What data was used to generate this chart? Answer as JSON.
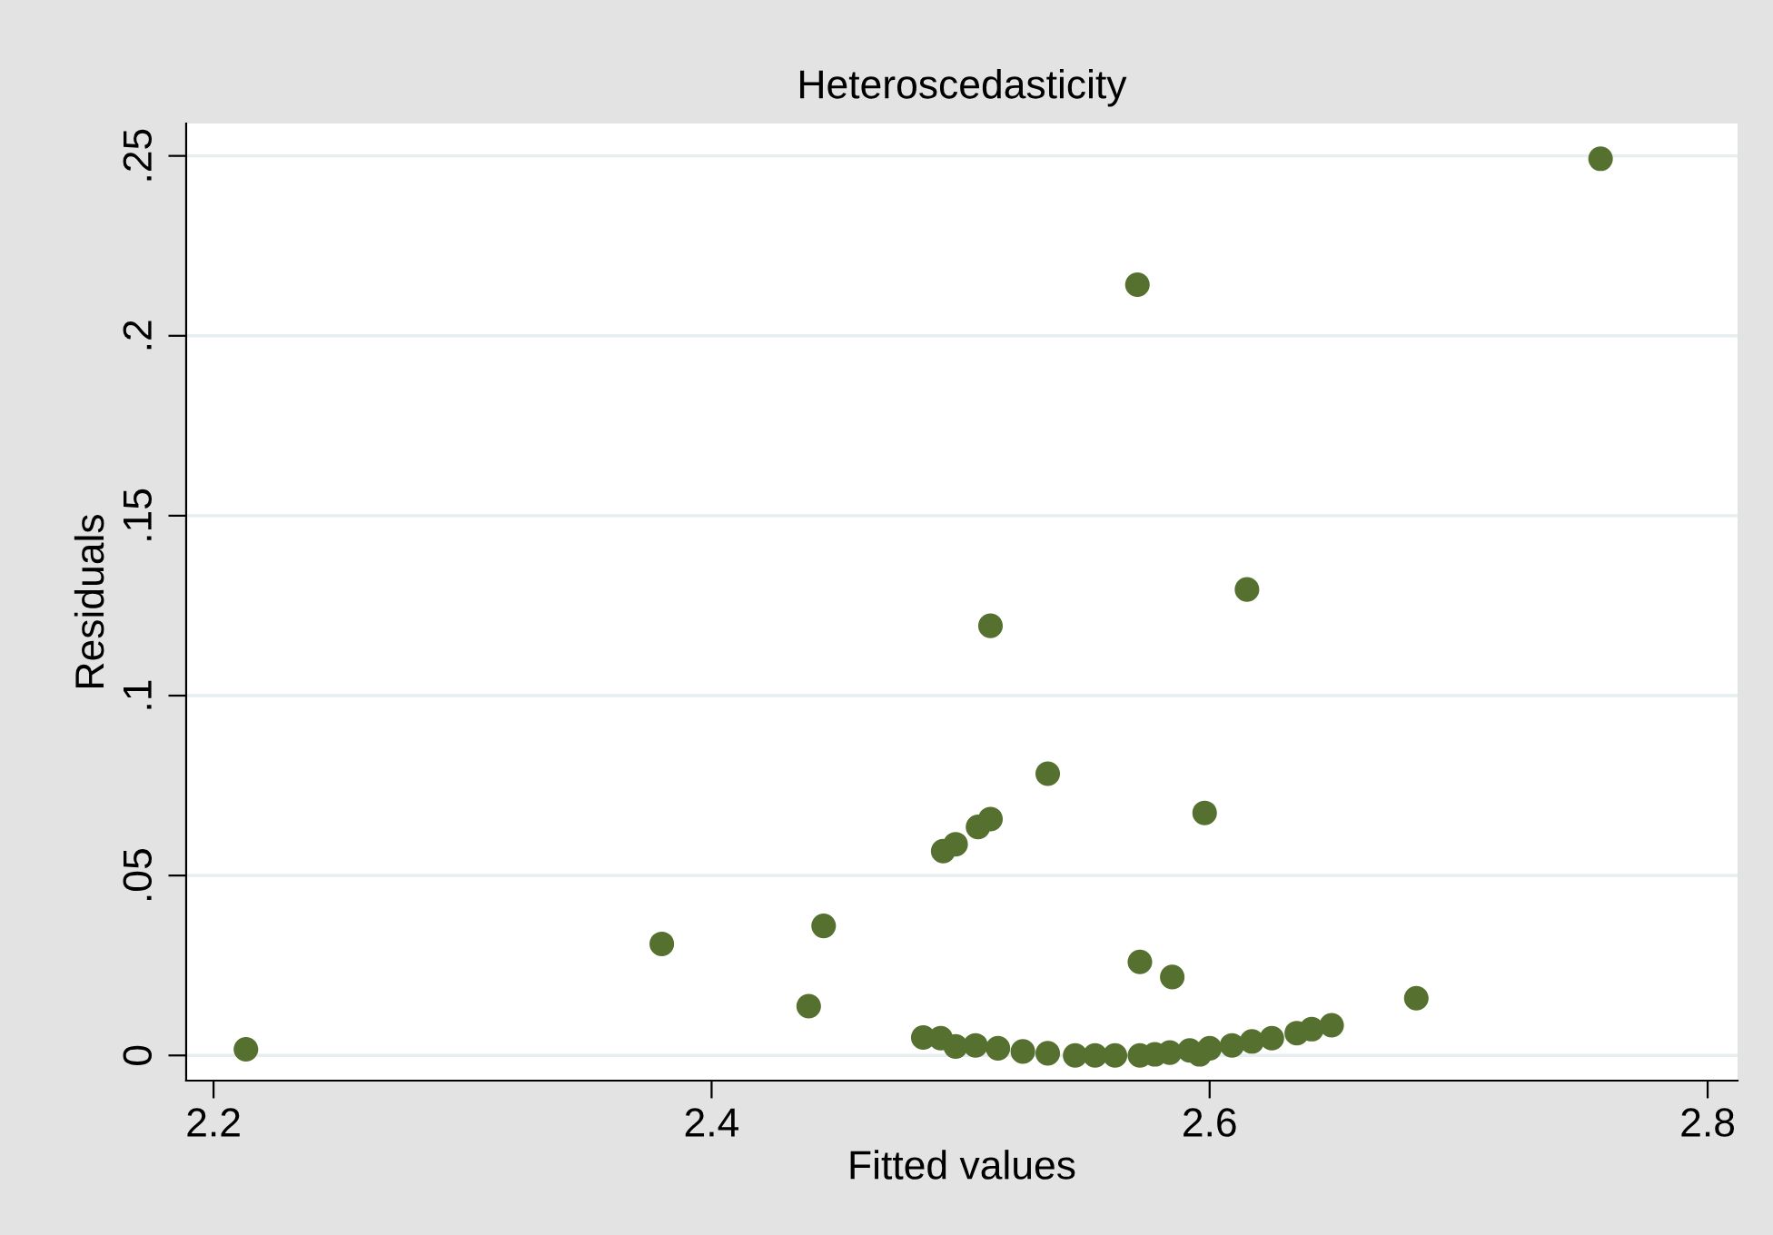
{
  "chart_data": {
    "type": "scatter",
    "title": "Heteroscedasticity",
    "xlabel": "Fitted values",
    "ylabel": "Residuals",
    "series": [
      {
        "color": "#55702f",
        "x": [
          2.213,
          2.38,
          2.439,
          2.445,
          2.493,
          2.498,
          2.507,
          2.512,
          2.512,
          2.535,
          2.571,
          2.572,
          2.585,
          2.598,
          2.615,
          2.683,
          2.757,
          2.485,
          2.492,
          2.498,
          2.506,
          2.515,
          2.525,
          2.535,
          2.546,
          2.554,
          2.562,
          2.572,
          2.578,
          2.584,
          2.592,
          2.596,
          2.6,
          2.609,
          2.617,
          2.625,
          2.635,
          2.641,
          2.649
        ],
        "values": [
          0.0017,
          0.031,
          0.0137,
          0.036,
          0.0568,
          0.0587,
          0.0635,
          0.0657,
          0.1194,
          0.0783,
          0.2142,
          0.026,
          0.0218,
          0.0674,
          0.1295,
          0.0159,
          0.2492,
          0.005,
          0.0048,
          0.0025,
          0.0028,
          0.002,
          0.0011,
          0.0006,
          0.0,
          0.0,
          0.0,
          0.0,
          0.0003,
          0.0008,
          0.0014,
          0.0003,
          0.002,
          0.0028,
          0.0039,
          0.0048,
          0.0062,
          0.0073,
          0.0084
        ]
      }
    ],
    "xlim": [
      2.189,
      2.812
    ],
    "ylim": [
      -0.007,
      0.259
    ],
    "xticks": [
      2.2,
      2.4,
      2.6,
      2.8
    ],
    "yticks": [
      0,
      {
        "value": 0.05,
        "label": ".05"
      },
      {
        "value": 0.1,
        "label": ".1"
      },
      {
        "value": 0.15,
        "label": ".15"
      },
      {
        "value": 0.2,
        "label": ".2"
      },
      {
        "value": 0.25,
        "label": ".25"
      }
    ],
    "grid": "y",
    "marker": "circle",
    "legend": false
  }
}
